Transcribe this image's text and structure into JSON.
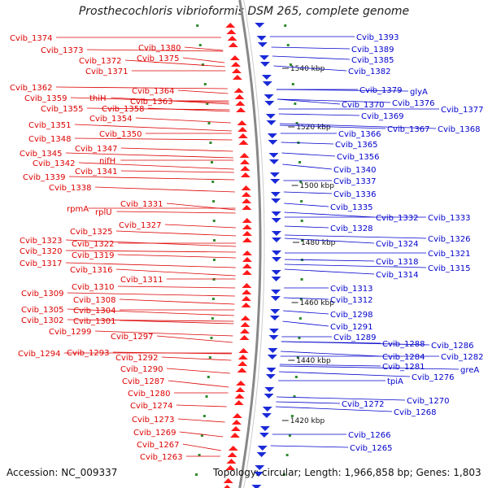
{
  "title": "Prosthecochloris vibrioformis DSM 265, complete genome",
  "footer": {
    "accession": "Accession: NC_009337",
    "summary": "Topology: circular; Length: 1,966,858 bp; Genes: 1,803"
  },
  "colors": {
    "left_labels": "#dd0000",
    "right_labels": "#0000cc",
    "backbone": "#888888",
    "tick": "#2e8b2e"
  },
  "scale_marks": [
    "1540 kbp",
    "1520 kbp",
    "1500 kbp",
    "1480 kbp",
    "1460 kbp",
    "1440 kbp",
    "1420 kbp"
  ],
  "left_labels": [
    "Cvib_1374",
    "Cvib_1373",
    "Cvib_1380",
    "Cvib_1375",
    "Cvib_1372",
    "Cvib_1371",
    "Cvib_1362",
    "Cvib_1364",
    "Cvib_1359",
    "thiH",
    "Cvib_1363",
    "Cvib_1355",
    "Cvib_1358",
    "Cvib_1354",
    "Cvib_1351",
    "Cvib_1350",
    "Cvib_1348",
    "Cvib_1347",
    "Cvib_1345",
    "Cvib_1342",
    "nifH",
    "Cvib_1341",
    "Cvib_1339",
    "Cvib_1338",
    "Cvib_1331",
    "rpmA",
    "rplU",
    "Cvib_1327",
    "Cvib_1325",
    "Cvib_1323",
    "Cvib_1322",
    "Cvib_1320",
    "Cvib_1319",
    "Cvib_1317",
    "Cvib_1316",
    "Cvib_1311",
    "Cvib_1310",
    "Cvib_1309",
    "Cvib_1308",
    "Cvib_1305",
    "Cvib_1304",
    "Cvib_1302",
    "Cvib_1301",
    "Cvib_1299",
    "Cvib_1297",
    "Cvib_1294",
    "Cvib_1293",
    "Cvib_1292",
    "Cvib_1290",
    "Cvib_1287",
    "Cvib_1280",
    "Cvib_1274",
    "Cvib_1273",
    "Cvib_1269",
    "Cvib_1267",
    "Cvib_1263"
  ],
  "right_labels": [
    "Cvib_1393",
    "Cvib_1389",
    "Cvib_1385",
    "Cvib_1382",
    "Cvib_1379",
    "glyA",
    "Cvib_1376",
    "Cvib_1370",
    "Cvib_1377",
    "Cvib_1369",
    "Cvib_1367",
    "Cvib_1368",
    "Cvib_1366",
    "Cvib_1365",
    "Cvib_1356",
    "Cvib_1340",
    "Cvib_1337",
    "Cvib_1336",
    "Cvib_1335",
    "Cvib_1332",
    "Cvib_1333",
    "Cvib_1328",
    "Cvib_1326",
    "Cvib_1324",
    "Cvib_1321",
    "Cvib_1318",
    "Cvib_1315",
    "Cvib_1314",
    "Cvib_1313",
    "Cvib_1312",
    "Cvib_1298",
    "Cvib_1291",
    "Cvib_1289",
    "Cvib_1288",
    "Cvib_1286",
    "Cvib_1284",
    "Cvib_1282",
    "Cvib_1281",
    "greA",
    "Cvib_1276",
    "tpiA",
    "Cvib_1272",
    "Cvib_1270",
    "Cvib_1268",
    "Cvib_1266",
    "Cvib_1265"
  ]
}
